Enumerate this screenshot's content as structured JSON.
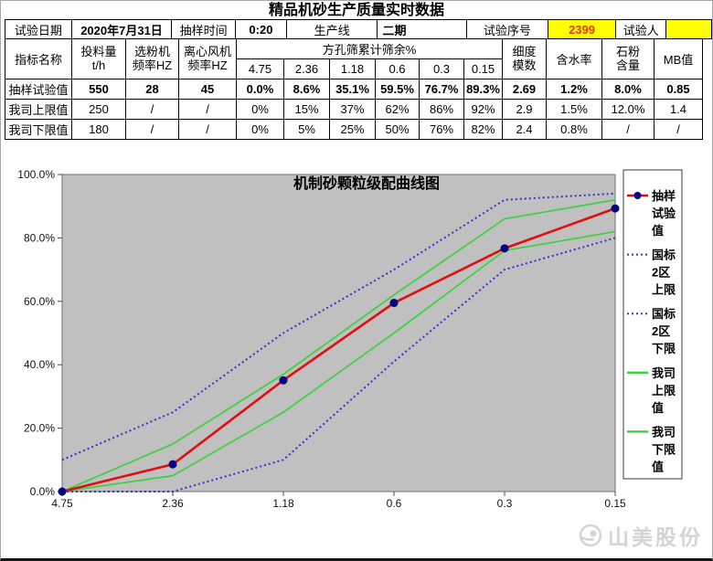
{
  "title": "精品机砂生产质量实时数据",
  "info_row": {
    "cells": [
      "试验日期",
      "2020年7月31日",
      "抽样时间",
      "0:20",
      "生产线",
      "二期",
      "试验序号",
      "2399",
      "试验人",
      ""
    ]
  },
  "main_table": {
    "col_indicator": "指标名称",
    "col_feed": "投料量\nt/h",
    "col_classifier": "选粉机\n频率HZ",
    "col_fan": "离心风机\n频率HZ",
    "col_sieve_group": "方孔筛累计筛余%",
    "sieves": [
      "4.75",
      "2.36",
      "1.18",
      "0.6",
      "0.3",
      "0.15"
    ],
    "col_fineness": "细度\n模数",
    "col_moisture": "含水率",
    "col_stone_powder": "石粉\n含量",
    "col_mb": "MB值",
    "rows": [
      {
        "name": "抽样试验值",
        "values": [
          "550",
          "28",
          "45",
          "0.0%",
          "8.6%",
          "35.1%",
          "59.5%",
          "76.7%",
          "89.3%",
          "2.69",
          "1.2%",
          "8.0%",
          "0.85"
        ]
      },
      {
        "name": "我司上限值",
        "values": [
          "250",
          "/",
          "/",
          "0%",
          "15%",
          "37%",
          "62%",
          "86%",
          "92%",
          "2.9",
          "1.5%",
          "12.0%",
          "1.4"
        ]
      },
      {
        "name": "我司下限值",
        "values": [
          "180",
          "/",
          "/",
          "0%",
          "5%",
          "25%",
          "50%",
          "76%",
          "82%",
          "2.4",
          "0.8%",
          "/",
          "/"
        ]
      }
    ]
  },
  "colors": {
    "highlight_bg": "#FFFF00",
    "serial_text": "#E23A0C",
    "plot_bg": "#C0C0C0",
    "axis": "#4a4a4a"
  },
  "chart_data": {
    "type": "line",
    "title": "机制砂颗粒级配曲线图",
    "x_categories": [
      "4.75",
      "2.36",
      "1.18",
      "0.6",
      "0.3",
      "0.15"
    ],
    "y_tick_labels": [
      "0.0%",
      "20.0%",
      "40.0%",
      "60.0%",
      "80.0%",
      "100.0%"
    ],
    "ylim": [
      0,
      100
    ],
    "grid": false,
    "legend_position": "right",
    "plot_bg": "#C0C0C0",
    "series": [
      {
        "name": "抽样试验值",
        "legend_lines": [
          "抽样",
          "试验",
          "值"
        ],
        "values": [
          0,
          8.6,
          35.1,
          59.5,
          76.7,
          89.3
        ],
        "color": "#E00E0E",
        "style": "solid",
        "marker": "circle",
        "marker_color": "#000080"
      },
      {
        "name": "国标2区上限",
        "legend_lines": [
          "国标",
          "2区",
          "上限"
        ],
        "values": [
          10,
          25,
          50,
          70,
          92,
          94
        ],
        "color": "#3333CC",
        "style": "dotted"
      },
      {
        "name": "国标2区下限",
        "legend_lines": [
          "国标",
          "2区",
          "下限"
        ],
        "values": [
          0,
          0,
          10,
          41,
          70,
          80
        ],
        "color": "#3333CC",
        "style": "dotted"
      },
      {
        "name": "我司上限值",
        "legend_lines": [
          "我司",
          "上限",
          "值"
        ],
        "values": [
          0,
          15,
          37,
          62,
          86,
          92
        ],
        "color": "#3FD03F",
        "style": "solid"
      },
      {
        "name": "我司下限值",
        "legend_lines": [
          "我司",
          "下限",
          "值"
        ],
        "values": [
          0,
          5,
          25,
          50,
          76,
          82
        ],
        "color": "#3FD03F",
        "style": "solid"
      }
    ]
  },
  "watermark": {
    "text": "山美股份"
  }
}
